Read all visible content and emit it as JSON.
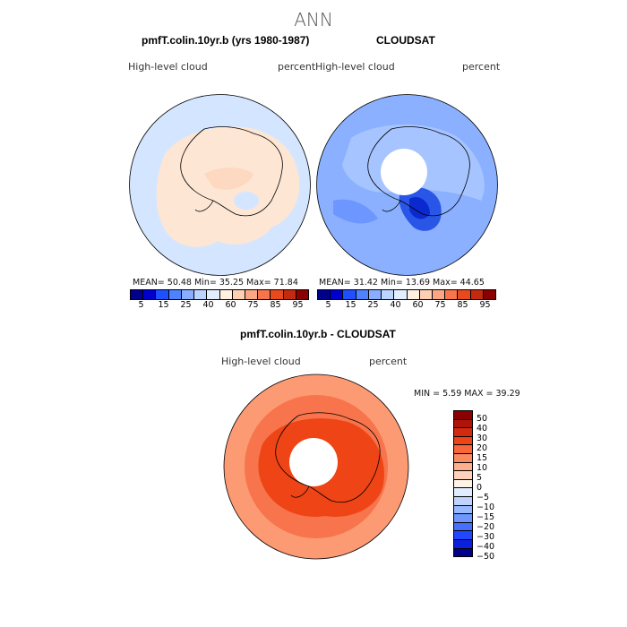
{
  "title": "ANN",
  "panels": [
    {
      "title": "pmfT.colin.10yr.b (yrs 1980-1987)",
      "variable": "High-level cloud",
      "units": "percent",
      "stats": "MEAN=  50.48   Min=  35.25   Max=  71.84",
      "ocean_color": "#d4e6ff",
      "land_color": "#fde6d4"
    },
    {
      "title": "CLOUDSAT",
      "variable": "High-level cloud",
      "units": "percent",
      "stats": "MEAN=  31.42   Min=  13.69   Max=  44.65",
      "ocean_color": "#8ab0ff",
      "land_color": "#a6c4ff"
    },
    {
      "title": "pmfT.colin.10yr.b - CLOUDSAT",
      "variable": "High-level cloud",
      "units": "percent",
      "stats": "MIN =     5.59  MAX =   39.29",
      "ocean_color": "#fc9a74",
      "land_color": "#f06a3c"
    }
  ],
  "colorbar_abs": {
    "colors": [
      "#00008b",
      "#0000cd",
      "#1e50ff",
      "#4f82ff",
      "#8aaeff",
      "#bcd2ff",
      "#e2eeff",
      "#fff0e0",
      "#fdd0b4",
      "#fca684",
      "#f7744c",
      "#e84a1e",
      "#c42a10",
      "#8b0000"
    ],
    "labels": [
      "5",
      "15",
      "25",
      "40",
      "60",
      "75",
      "85",
      "95"
    ]
  },
  "colorbar_diff": {
    "colors": [
      "#8b0000",
      "#b01408",
      "#d42a10",
      "#ee4416",
      "#f7673a",
      "#fa8a60",
      "#fcb08c",
      "#fdd2bc",
      "#fff2e6",
      "#e0ecff",
      "#bed4ff",
      "#98b8ff",
      "#6e96ff",
      "#4670ff",
      "#2248ff",
      "#0a20dc",
      "#00008b"
    ],
    "labels": [
      "50",
      "40",
      "30",
      "20",
      "15",
      "10",
      "5",
      "0",
      "−5",
      "−10",
      "−15",
      "−20",
      "−30",
      "−40",
      "−50"
    ]
  }
}
